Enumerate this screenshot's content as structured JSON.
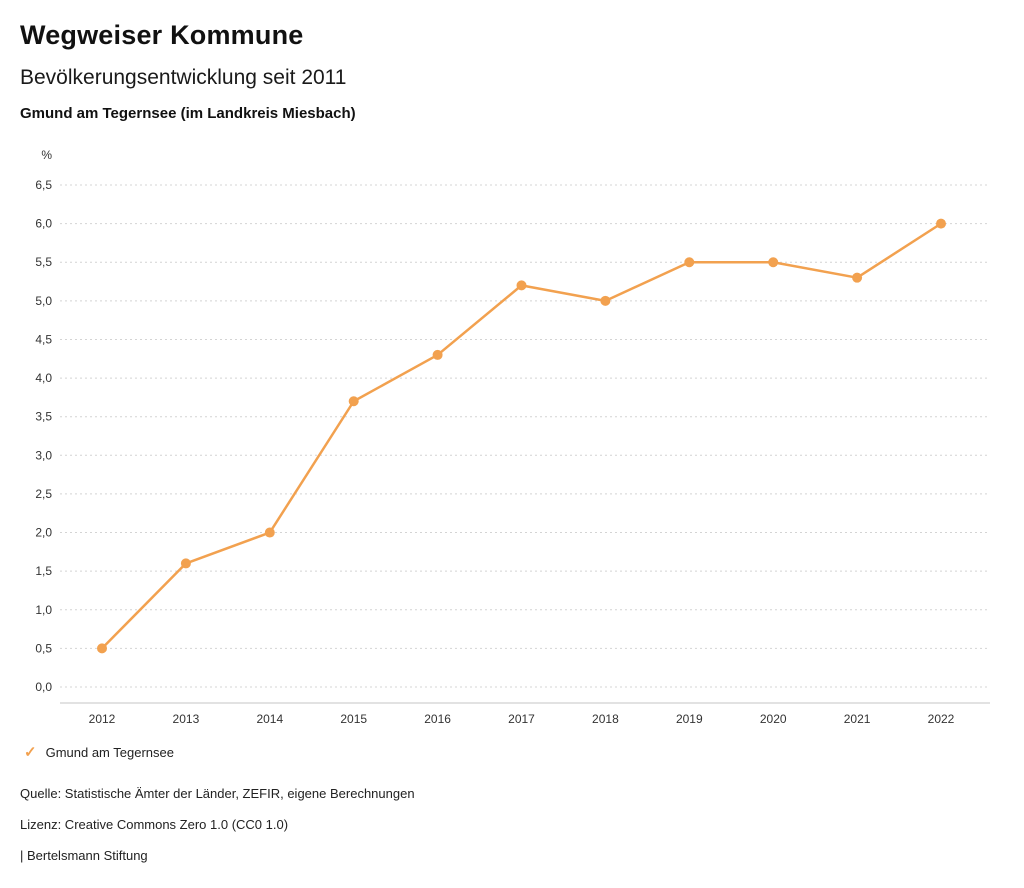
{
  "header": {
    "title": "Wegweiser Kommune",
    "subtitle": "Bevölkerungsentwicklung seit 2011",
    "region": "Gmund am Tegernsee (im Landkreis Miesbach)"
  },
  "chart_data": {
    "type": "line",
    "title": "Bevölkerungsentwicklung seit 2011",
    "subtitle": "Gmund am Tegernsee (im Landkreis Miesbach)",
    "unit_label": "%",
    "categories": [
      "2012",
      "2013",
      "2014",
      "2015",
      "2016",
      "2017",
      "2018",
      "2019",
      "2020",
      "2021",
      "2022"
    ],
    "series": [
      {
        "name": "Gmund am Tegernsee",
        "values": [
          0.5,
          1.6,
          2.0,
          3.7,
          4.3,
          5.2,
          5.0,
          5.5,
          5.5,
          5.3,
          6.0
        ],
        "color": "#f2a14f"
      }
    ],
    "ylim": [
      0,
      6.5
    ],
    "ytick_step": 0.5,
    "ytick_labels": [
      "0,0",
      "0,5",
      "1,0",
      "1,5",
      "2,0",
      "2,5",
      "3,0",
      "3,5",
      "4,0",
      "4,5",
      "5,0",
      "5,5",
      "6,0",
      "6,5"
    ],
    "grid": "horizontal-dotted",
    "legend_position": "bottom-left"
  },
  "legend": {
    "items": [
      {
        "label": "Gmund am Tegernsee",
        "color": "#f2a14f",
        "marker": "check"
      }
    ]
  },
  "footer": {
    "source": "Quelle: Statistische Ämter der Länder, ZEFIR, eigene Berechnungen",
    "license": "Lizenz: Creative Commons Zero 1.0 (CC0 1.0)",
    "attribution": "| Bertelsmann Stiftung"
  }
}
